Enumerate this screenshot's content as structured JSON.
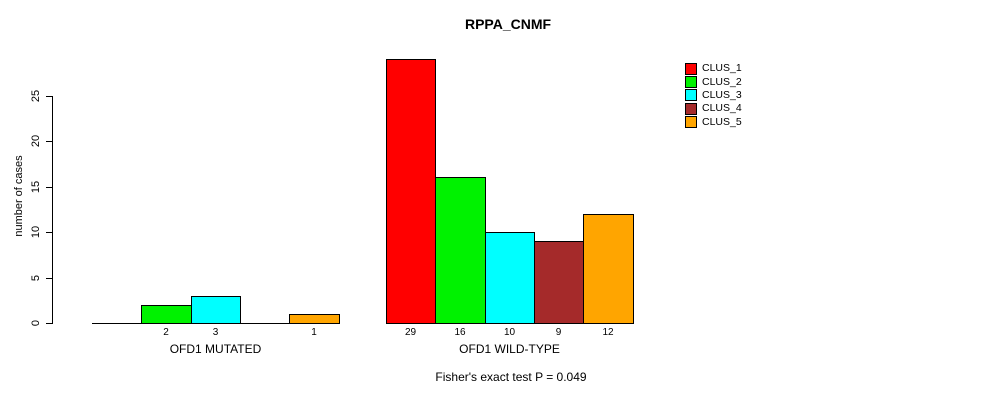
{
  "title": "RPPA_CNMF",
  "chart_data": {
    "type": "bar",
    "title": "RPPA_CNMF",
    "xlabel": "",
    "ylabel": "number of cases",
    "ylim": [
      0,
      25
    ],
    "yticks": [
      0,
      5,
      10,
      15,
      20,
      25
    ],
    "grid": false,
    "legend_position": "right",
    "series": [
      {
        "name": "CLUS_1",
        "color": "#ff0000"
      },
      {
        "name": "CLUS_2",
        "color": "#00f200"
      },
      {
        "name": "CLUS_3",
        "color": "#00ffff"
      },
      {
        "name": "CLUS_4",
        "color": "#a52a2a"
      },
      {
        "name": "CLUS_5",
        "color": "#ffa500"
      }
    ],
    "groups": [
      {
        "label": "OFD1 MUTATED",
        "values": [
          0,
          2,
          3,
          0,
          1
        ],
        "bar_labels": [
          "",
          "2",
          "3",
          "",
          "1"
        ]
      },
      {
        "label": "OFD1 WILD-TYPE",
        "values": [
          29,
          16,
          10,
          9,
          12
        ],
        "bar_labels": [
          "29",
          "16",
          "10",
          "9",
          "12"
        ]
      }
    ],
    "annotation": "Fisher's exact test P = 0.049"
  }
}
